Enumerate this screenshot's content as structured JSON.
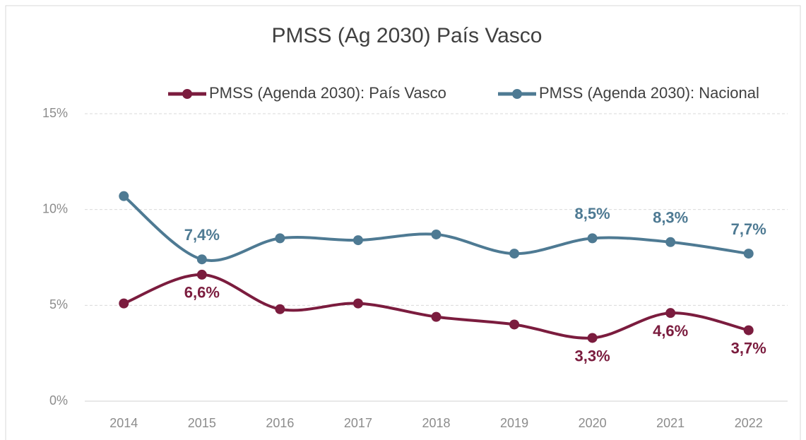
{
  "chart_data": {
    "type": "line",
    "title": "PMSS (Ag 2030) País Vasco",
    "categories": [
      "2014",
      "2015",
      "2016",
      "2017",
      "2018",
      "2019",
      "2020",
      "2021",
      "2022"
    ],
    "series": [
      {
        "name": "PMSS (Agenda 2030): País Vasco",
        "color": "#7b1c3e",
        "values": [
          5.1,
          6.6,
          4.8,
          5.1,
          4.4,
          4.0,
          3.3,
          4.6,
          3.7
        ],
        "value_labels": [
          null,
          "6,6%",
          null,
          null,
          null,
          null,
          "3,3%",
          "4,6%",
          "3,7%"
        ]
      },
      {
        "name": "PMSS (Agenda 2030): Nacional",
        "color": "#4e7a93",
        "values": [
          10.7,
          7.4,
          8.5,
          8.4,
          8.7,
          7.7,
          8.5,
          8.3,
          7.7
        ],
        "value_labels": [
          null,
          "7,4%",
          null,
          null,
          null,
          null,
          "8,5%",
          "8,3%",
          "7,7%"
        ]
      }
    ],
    "ylim": [
      0,
      15
    ],
    "yticks": [
      {
        "value": 0,
        "label": "0%"
      },
      {
        "value": 5,
        "label": "5%"
      },
      {
        "value": 10,
        "label": "10%"
      },
      {
        "value": 15,
        "label": "15%"
      }
    ],
    "grid": true,
    "legend": "top"
  }
}
